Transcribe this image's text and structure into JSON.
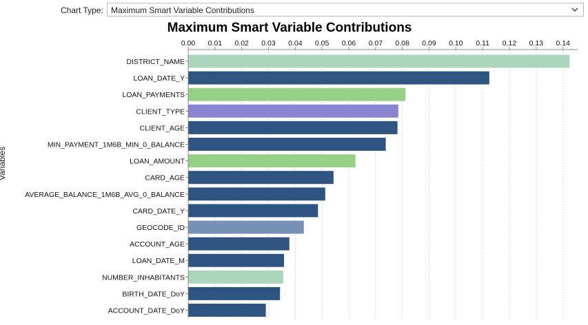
{
  "controls": {
    "chart_type_label": "Chart Type:",
    "chart_type_value": "Maximum Smart Variable Contributions"
  },
  "chart_data": {
    "type": "bar",
    "orientation": "horizontal",
    "title": "Maximum Smart Variable Contributions",
    "ylabel": "Variables",
    "xlabel": "",
    "xlim": [
      0,
      0.145
    ],
    "x_ticks": [
      "0.00",
      "0.01",
      "0.02",
      "0.03",
      "0.04",
      "0.05",
      "0.06",
      "0.07",
      "0.08",
      "0.09",
      "0.10",
      "0.11",
      "0.12",
      "0.13",
      "0.14"
    ],
    "x_tick_values": [
      0,
      0.01,
      0.02,
      0.03,
      0.04,
      0.05,
      0.06,
      0.07,
      0.08,
      0.09,
      0.1,
      0.11,
      0.12,
      0.13,
      0.14
    ],
    "axis_position": "top",
    "grid": true,
    "categories": [
      "DISTRICT_NAME",
      "LOAN_DATE_Y",
      "LOAN_PAYMENTS",
      "CLIENT_TYPE",
      "CLIENT_AGE",
      "MIN_PAYMENT_1M6B_MIN_0_BALANCE",
      "LOAN_AMOUNT",
      "CARD_AGE",
      "AVERAGE_BALANCE_1M6B_AVG_0_BALANCE",
      "CARD_DATE_Y",
      "GEOCODE_ID",
      "ACCOUNT_AGE",
      "LOAN_DATE_M",
      "NUMBER_INHABITANTS",
      "BIRTH_DATE_DoY",
      "ACCOUNT_DATE_DoY"
    ],
    "values": [
      0.1425,
      0.1125,
      0.0812,
      0.0785,
      0.0782,
      0.0738,
      0.0625,
      0.0543,
      0.0512,
      0.0485,
      0.0432,
      0.0378,
      0.0358,
      0.0355,
      0.0343,
      0.029
    ],
    "colors": [
      "#acd6bb",
      "#2e5582",
      "#97d188",
      "#8a84d1",
      "#2e5582",
      "#2e5582",
      "#97d188",
      "#2e5582",
      "#2e5582",
      "#2e5582",
      "#7790b5",
      "#2e5582",
      "#2e5582",
      "#acd6bb",
      "#2e5582",
      "#2e5582"
    ]
  }
}
